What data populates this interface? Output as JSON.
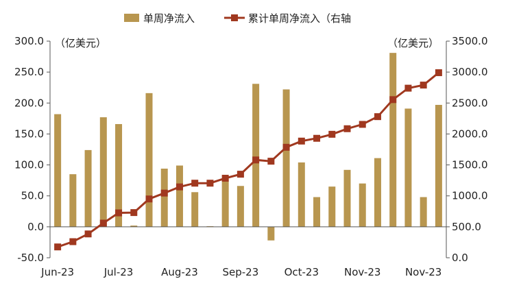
{
  "chart_data": {
    "type": "bar+line",
    "title": "",
    "legend": {
      "position": "top-center",
      "bar_label": "单周净流入",
      "line_label": "累计单周净流入（右轴",
      "bar_color": "#B8964F",
      "line_color": "#A0381F"
    },
    "left_axis": {
      "unit": "（亿美元）",
      "min": -50,
      "max": 300,
      "step": 50,
      "ticks": [
        "-50.0",
        "0.0",
        "50.0",
        "100.0",
        "150.0",
        "200.0",
        "250.0",
        "300.0"
      ]
    },
    "right_axis": {
      "unit": "（亿美元）",
      "min": 0,
      "max": 3500,
      "step": 500,
      "ticks": [
        "0.0",
        "500.0",
        "1000.0",
        "1500.0",
        "2000.0",
        "2500.0",
        "3000.0",
        "3500.0"
      ]
    },
    "x_tick_labels": [
      {
        "index": 0,
        "label": "Jun-23"
      },
      {
        "index": 4,
        "label": "Jul-23"
      },
      {
        "index": 8,
        "label": "Aug-23"
      },
      {
        "index": 12,
        "label": "Sep-23"
      },
      {
        "index": 16,
        "label": "Oct-23"
      },
      {
        "index": 20,
        "label": "Nov-23"
      },
      {
        "index": 24,
        "label": "Nov-23"
      }
    ],
    "weekly_inflow": [
      182,
      85,
      124,
      177,
      166,
      2,
      216,
      94,
      99,
      56,
      1,
      76,
      66,
      231,
      -22,
      222,
      104,
      48,
      65,
      92,
      70,
      111,
      281,
      191,
      48,
      197
    ],
    "cumulative_inflow": [
      175,
      260,
      385,
      560,
      725,
      730,
      950,
      1045,
      1145,
      1205,
      1205,
      1285,
      1350,
      1580,
      1560,
      1785,
      1885,
      1930,
      1995,
      2085,
      2155,
      2280,
      2555,
      2740,
      2790,
      2990
    ]
  }
}
